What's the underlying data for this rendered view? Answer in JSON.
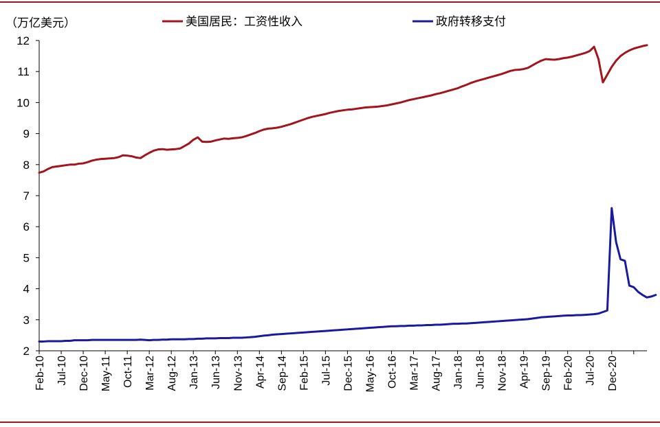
{
  "chart_data": {
    "type": "line",
    "unit_label": "（万亿美元）",
    "ylim": [
      2,
      12
    ],
    "yticks": [
      2,
      3,
      4,
      5,
      6,
      7,
      8,
      9,
      10,
      11,
      12
    ],
    "grid": false,
    "legend_position": "top",
    "x_start": "Feb-10",
    "x_end": "Dec-20",
    "xtick_labels": [
      "Feb-10",
      "Jul-10",
      "Dec-10",
      "May-11",
      "Oct-11",
      "Mar-12",
      "Aug-12",
      "Jan-13",
      "Jun-13",
      "Nov-13",
      "Apr-14",
      "Sep-14",
      "Feb-15",
      "Jul-15",
      "Dec-15",
      "May-16",
      "Oct-16",
      "Mar-17",
      "Aug-17",
      "Jan-18",
      "Jun-18",
      "Nov-18",
      "Apr-19",
      "Sep-19",
      "Feb-20",
      "Jul-20",
      "Dec-20"
    ],
    "series": [
      {
        "name": "美国居民：工资性收入",
        "color": "#A3141B",
        "values": [
          7.74,
          7.78,
          7.86,
          7.92,
          7.94,
          7.96,
          7.98,
          8.0,
          8.0,
          8.03,
          8.04,
          8.08,
          8.13,
          8.16,
          8.18,
          8.19,
          8.2,
          8.21,
          8.24,
          8.3,
          8.29,
          8.27,
          8.23,
          8.21,
          8.3,
          8.38,
          8.45,
          8.49,
          8.5,
          8.48,
          8.49,
          8.5,
          8.52,
          8.6,
          8.68,
          8.8,
          8.88,
          8.74,
          8.73,
          8.74,
          8.78,
          8.81,
          8.84,
          8.83,
          8.85,
          8.86,
          8.88,
          8.92,
          8.97,
          9.02,
          9.08,
          9.13,
          9.16,
          9.17,
          9.19,
          9.22,
          9.26,
          9.3,
          9.35,
          9.4,
          9.45,
          9.5,
          9.54,
          9.57,
          9.6,
          9.63,
          9.67,
          9.7,
          9.73,
          9.75,
          9.77,
          9.78,
          9.8,
          9.82,
          9.84,
          9.85,
          9.86,
          9.87,
          9.89,
          9.91,
          9.94,
          9.97,
          10.0,
          10.04,
          10.08,
          10.11,
          10.14,
          10.17,
          10.2,
          10.23,
          10.27,
          10.3,
          10.34,
          10.38,
          10.42,
          10.46,
          10.52,
          10.57,
          10.63,
          10.68,
          10.72,
          10.76,
          10.8,
          10.84,
          10.88,
          10.92,
          10.97,
          11.02,
          11.05,
          11.06,
          11.08,
          11.12,
          11.2,
          11.28,
          11.35,
          11.4,
          11.39,
          11.38,
          11.4,
          11.43,
          11.45,
          11.48,
          11.52,
          11.56,
          11.6,
          11.66,
          11.8,
          11.4,
          10.65,
          10.9,
          11.15,
          11.35,
          11.5,
          11.6,
          11.68,
          11.74,
          11.78,
          11.82,
          11.85
        ]
      },
      {
        "name": "政府转移支付",
        "color": "#1A1A9E",
        "values": [
          2.3,
          2.3,
          2.31,
          2.31,
          2.31,
          2.31,
          2.32,
          2.32,
          2.34,
          2.34,
          2.34,
          2.34,
          2.35,
          2.35,
          2.35,
          2.35,
          2.35,
          2.35,
          2.35,
          2.35,
          2.35,
          2.35,
          2.35,
          2.36,
          2.35,
          2.34,
          2.35,
          2.35,
          2.36,
          2.36,
          2.37,
          2.37,
          2.37,
          2.37,
          2.38,
          2.38,
          2.39,
          2.39,
          2.4,
          2.4,
          2.4,
          2.41,
          2.41,
          2.41,
          2.42,
          2.42,
          2.42,
          2.43,
          2.44,
          2.45,
          2.47,
          2.49,
          2.5,
          2.52,
          2.53,
          2.54,
          2.55,
          2.56,
          2.57,
          2.58,
          2.59,
          2.6,
          2.61,
          2.62,
          2.63,
          2.64,
          2.65,
          2.66,
          2.67,
          2.68,
          2.69,
          2.7,
          2.71,
          2.72,
          2.73,
          2.74,
          2.75,
          2.76,
          2.77,
          2.78,
          2.79,
          2.79,
          2.8,
          2.8,
          2.81,
          2.81,
          2.82,
          2.82,
          2.83,
          2.83,
          2.84,
          2.84,
          2.85,
          2.86,
          2.87,
          2.87,
          2.88,
          2.88,
          2.89,
          2.9,
          2.91,
          2.92,
          2.93,
          2.94,
          2.95,
          2.96,
          2.97,
          2.98,
          2.99,
          3.0,
          3.01,
          3.02,
          3.04,
          3.06,
          3.08,
          3.09,
          3.1,
          3.11,
          3.12,
          3.13,
          3.14,
          3.14,
          3.15,
          3.15,
          3.16,
          3.17,
          3.18,
          3.2,
          3.25,
          3.3,
          6.6,
          5.5,
          4.95,
          4.9,
          4.1,
          4.05,
          3.9,
          3.8,
          3.72,
          3.75,
          3.8
        ]
      }
    ]
  }
}
